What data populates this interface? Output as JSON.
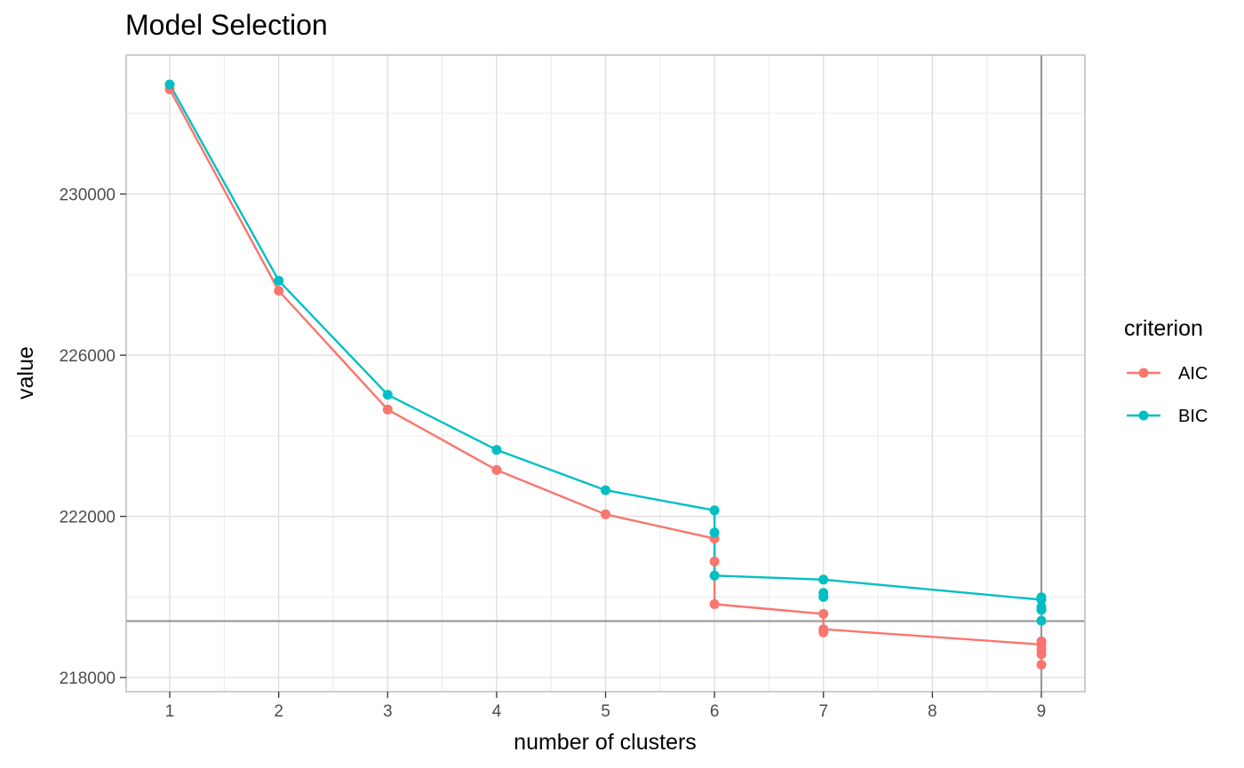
{
  "chart_data": {
    "type": "line",
    "title": "Model Selection",
    "xlabel": "number of clusters",
    "ylabel": "value",
    "xlim": [
      0.6,
      9.4
    ],
    "ylim": [
      217650,
      233450
    ],
    "x_ticks": [
      1,
      2,
      3,
      4,
      5,
      6,
      7,
      8,
      9
    ],
    "x_tick_labels": [
      "1",
      "2",
      "3",
      "4",
      "5",
      "6",
      "7",
      "8",
      "9"
    ],
    "y_ticks": [
      218000,
      222000,
      226000,
      230000
    ],
    "y_tick_labels": [
      "218000",
      "222000",
      "226000",
      "230000"
    ],
    "grid": true,
    "reference_lines": {
      "vertical_x": 9,
      "horizontal_y": 219400,
      "color": "#999999"
    },
    "legend": {
      "title": "criterion",
      "position": "right"
    },
    "series": [
      {
        "name": "AIC",
        "color": "#F8766D",
        "x": [
          1,
          2,
          3,
          4,
          5,
          6,
          6,
          6,
          7,
          7,
          7,
          9,
          9,
          9,
          9,
          9
        ],
        "y": [
          232600,
          227600,
          224650,
          223150,
          222050,
          221450,
          220880,
          219820,
          219580,
          219200,
          219120,
          218820,
          218900,
          218700,
          218580,
          218320
        ],
        "path": [
          [
            1,
            232600
          ],
          [
            2,
            227600
          ],
          [
            3,
            224650
          ],
          [
            4,
            223150
          ],
          [
            5,
            222050
          ],
          [
            6,
            221450
          ],
          [
            6,
            219820
          ],
          [
            7,
            219580
          ],
          [
            7,
            219200
          ],
          [
            9,
            218820
          ]
        ]
      },
      {
        "name": "BIC",
        "color": "#00BFC4",
        "x": [
          1,
          2,
          3,
          4,
          5,
          6,
          6,
          6,
          7,
          7,
          7,
          9,
          9,
          9,
          9,
          9
        ],
        "y": [
          232720,
          227850,
          225020,
          223650,
          222650,
          222150,
          221600,
          220530,
          220430,
          220100,
          220000,
          219930,
          219990,
          219750,
          219680,
          219410
        ],
        "path": [
          [
            1,
            232720
          ],
          [
            2,
            227850
          ],
          [
            3,
            225020
          ],
          [
            4,
            223650
          ],
          [
            5,
            222650
          ],
          [
            6,
            222150
          ],
          [
            6,
            220530
          ],
          [
            7,
            220430
          ],
          [
            9,
            219930
          ]
        ]
      }
    ]
  }
}
